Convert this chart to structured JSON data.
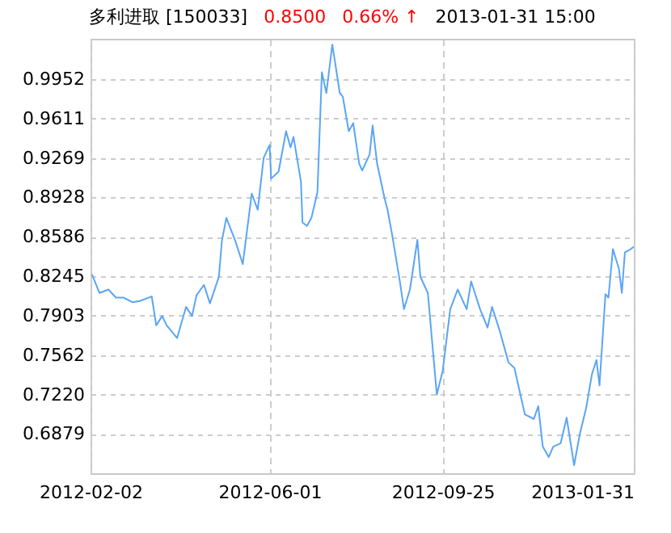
{
  "chart_data": {
    "type": "line",
    "title": "多利进取 [150033]",
    "annotations": [
      "0.8500",
      "0.66% ↑",
      "2013-01-31 15:00"
    ],
    "x": [
      "2012-02-03",
      "2012-02-08",
      "2012-02-14",
      "2012-02-19",
      "2012-02-24",
      "2012-03-01",
      "2012-03-06",
      "2012-03-14",
      "2012-03-17",
      "2012-03-21",
      "2012-03-24",
      "2012-03-31",
      "2012-04-06",
      "2012-04-10",
      "2012-04-13",
      "2012-04-18",
      "2012-04-22",
      "2012-04-28",
      "2012-04-30",
      "2012-05-03",
      "2012-05-09",
      "2012-05-14",
      "2012-05-20",
      "2012-05-24",
      "2012-05-28",
      "2012-06-01",
      "2012-06-02",
      "2012-06-07",
      "2012-06-12",
      "2012-06-15",
      "2012-06-17",
      "2012-06-22",
      "2012-06-23",
      "2012-06-26",
      "2012-06-29",
      "2012-07-03",
      "2012-07-06",
      "2012-07-09",
      "2012-07-13",
      "2012-07-18",
      "2012-07-20",
      "2012-07-24",
      "2012-07-27",
      "2012-07-31",
      "2012-08-02",
      "2012-08-07",
      "2012-08-09",
      "2012-08-12",
      "2012-08-17",
      "2012-08-19",
      "2012-08-22",
      "2012-08-27",
      "2012-08-30",
      "2012-09-03",
      "2012-09-08",
      "2012-09-10",
      "2012-09-15",
      "2012-09-21",
      "2012-09-25",
      "2012-09-30",
      "2012-10-05",
      "2012-10-11",
      "2012-10-14",
      "2012-10-20",
      "2012-10-25",
      "2012-10-28",
      "2012-11-02",
      "2012-11-08",
      "2012-11-12",
      "2012-11-19",
      "2012-11-25",
      "2012-11-28",
      "2012-12-01",
      "2012-12-05",
      "2012-12-08",
      "2012-12-13",
      "2012-12-17",
      "2012-12-22",
      "2012-12-26",
      "2012-12-30",
      "2013-01-03",
      "2013-01-06",
      "2013-01-08",
      "2013-01-12",
      "2013-01-14",
      "2013-01-17",
      "2013-01-21",
      "2013-01-23",
      "2013-01-25",
      "2013-01-29",
      "2013-01-31"
    ],
    "series": [
      {
        "color": "#5aa5f5",
        "values": [
          0.826,
          0.81,
          0.813,
          0.806,
          0.806,
          0.802,
          0.803,
          0.807,
          0.782,
          0.79,
          0.782,
          0.771,
          0.798,
          0.79,
          0.808,
          0.817,
          0.801,
          0.824,
          0.855,
          0.875,
          0.855,
          0.835,
          0.896,
          0.882,
          0.927,
          0.938,
          0.909,
          0.915,
          0.95,
          0.936,
          0.945,
          0.906,
          0.871,
          0.868,
          0.875,
          0.897,
          1.001,
          0.983,
          1.025,
          0.983,
          0.98,
          0.95,
          0.957,
          0.922,
          0.916,
          0.93,
          0.955,
          0.922,
          0.892,
          0.882,
          0.861,
          0.822,
          0.796,
          0.813,
          0.856,
          0.824,
          0.81,
          0.722,
          0.743,
          0.796,
          0.813,
          0.796,
          0.82,
          0.796,
          0.78,
          0.798,
          0.778,
          0.75,
          0.745,
          0.705,
          0.701,
          0.712,
          0.677,
          0.668,
          0.677,
          0.68,
          0.702,
          0.661,
          0.689,
          0.71,
          0.74,
          0.752,
          0.73,
          0.809,
          0.806,
          0.848,
          0.831,
          0.81,
          0.845,
          0.848,
          0.85
        ]
      }
    ],
    "xlim": [
      "2012-02-02",
      "2013-01-31"
    ],
    "xticks": [
      "2012-02-02",
      "2012-06-01",
      "2012-09-25",
      "2013-01-31"
    ],
    "ylim": [
      0.654,
      1.03
    ],
    "yticks": [
      0.6879,
      {
        "value": 0.722,
        "label": "0.7220"
      },
      0.7562,
      0.7903,
      0.8245,
      0.8586,
      0.8928,
      0.9269,
      0.9611,
      0.9952
    ],
    "grid": true,
    "line_style": "solid",
    "marker": "none",
    "legend": false
  }
}
